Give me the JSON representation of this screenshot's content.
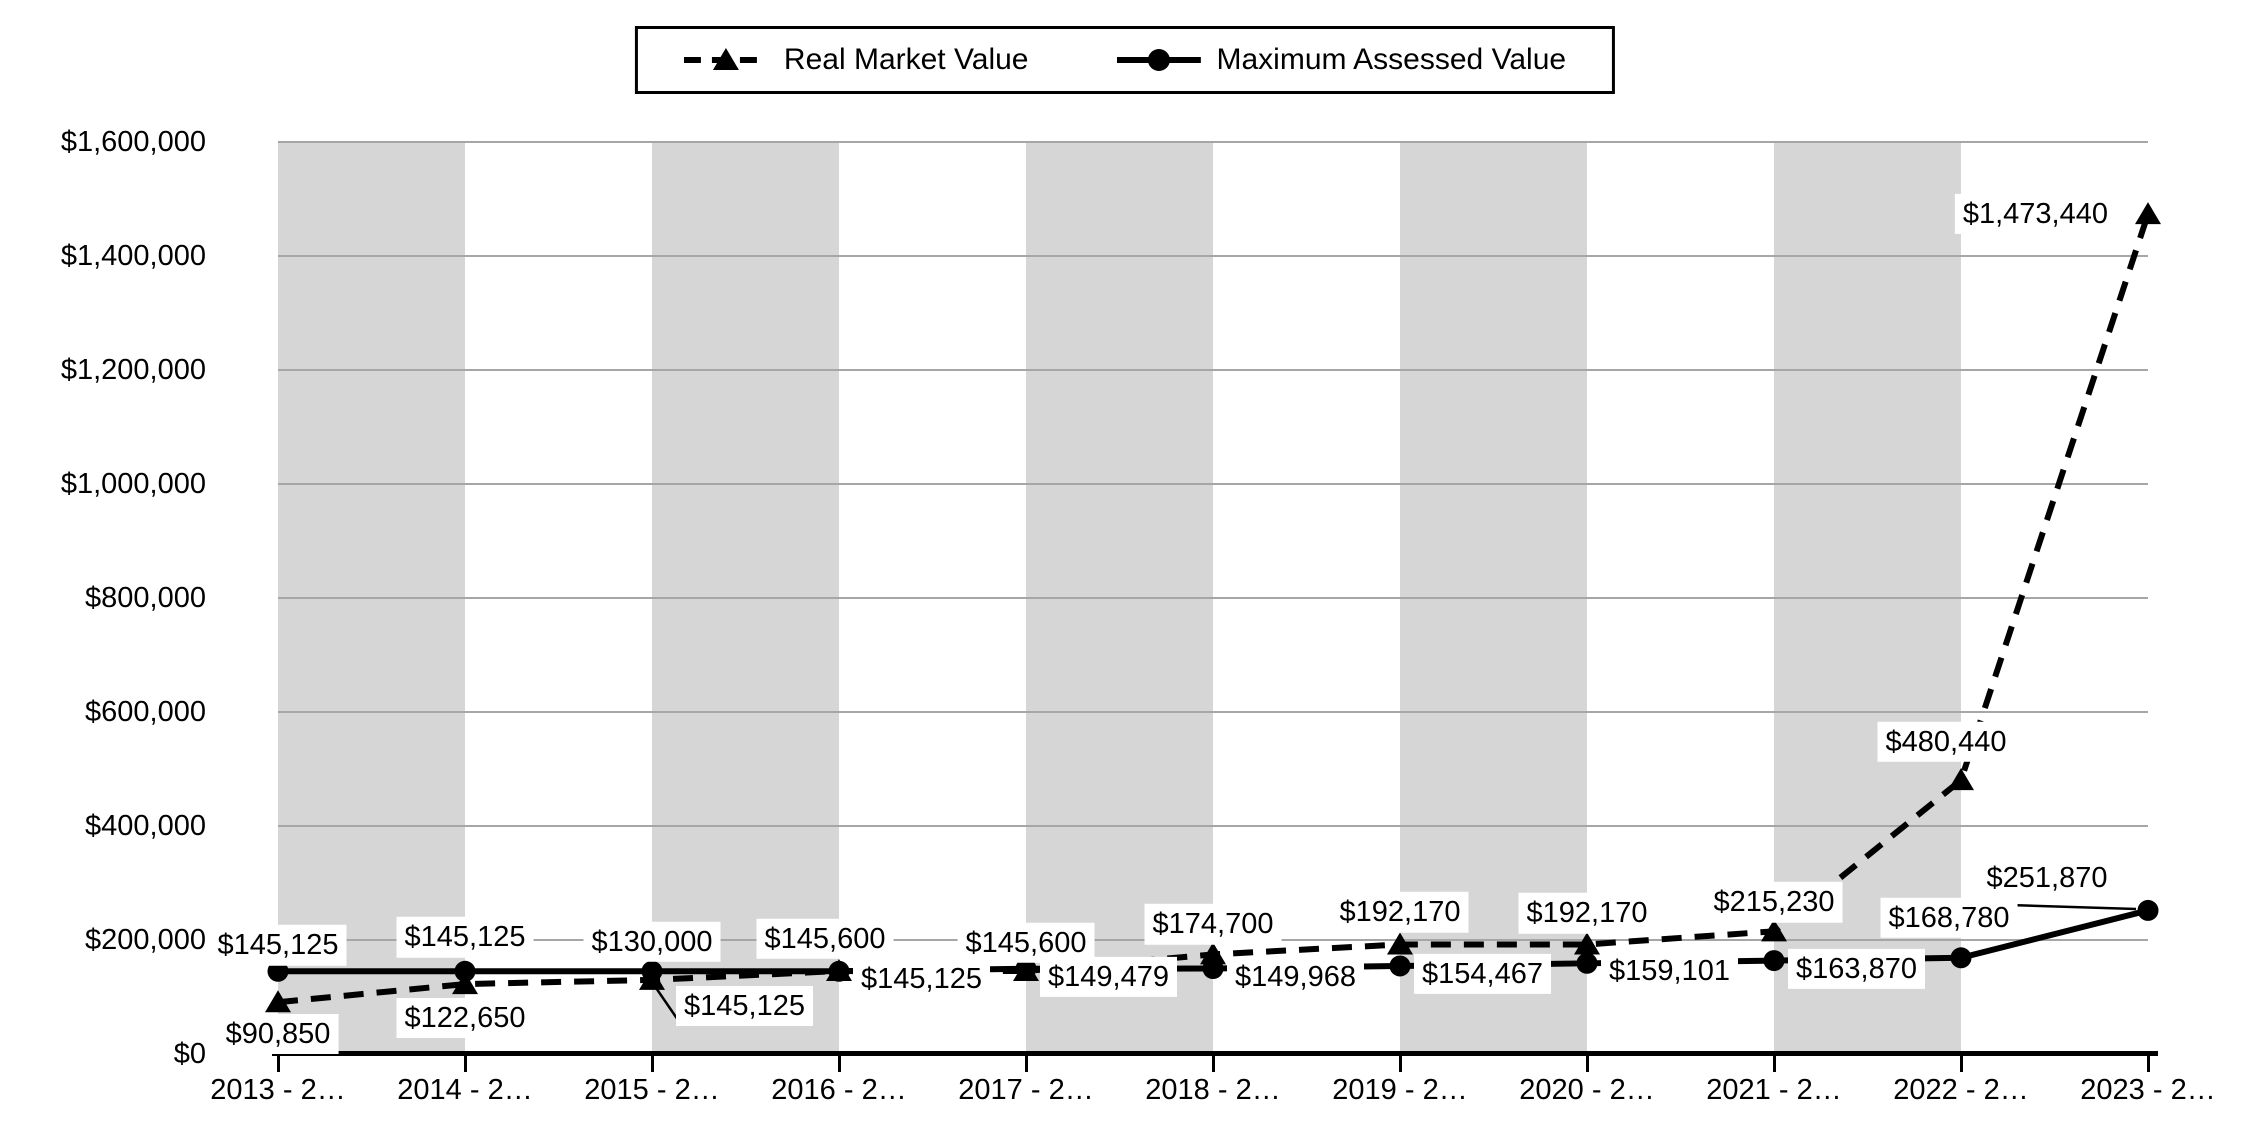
{
  "chart_data": {
    "type": "line",
    "title": "",
    "legend": {
      "position": "top"
    },
    "categories": [
      "2013 - 2…",
      "2014 - 2…",
      "2015 - 2…",
      "2016 - 2…",
      "2017 - 2…",
      "2018 - 2…",
      "2019 - 2…",
      "2020 - 2…",
      "2021 - 2…",
      "2022 - 2…",
      "2023 - 2…"
    ],
    "series": [
      {
        "name": "Real Market Value",
        "line_style": "dashed",
        "marker": "triangle",
        "color": "#000000",
        "values": [
          90850,
          122650,
          130000,
          145600,
          145600,
          174700,
          192170,
          192170,
          215230,
          480440,
          1473440
        ],
        "labels": [
          "$90,850",
          "$122,650",
          "$130,000",
          "$145,600",
          "$145,600",
          "$174,700",
          "$192,170",
          "$192,170",
          "$215,230",
          "$480,440",
          "$1,473,440"
        ]
      },
      {
        "name": "Maximum Assessed Value",
        "line_style": "solid",
        "marker": "circle",
        "color": "#000000",
        "values": [
          145125,
          145125,
          145125,
          145125,
          149479,
          149968,
          154467,
          159101,
          163870,
          168780,
          251870
        ],
        "labels": [
          "$145,125",
          "$145,125",
          "$145,125",
          "$145,125",
          "$149,479",
          "$149,968",
          "$154,467",
          "$159,101",
          "$163,870",
          "$168,780",
          "$251,870"
        ]
      }
    ],
    "y_axis": {
      "min": 0,
      "max": 1600000,
      "step": 200000,
      "tick_labels": [
        "$0",
        "$200,000",
        "$400,000",
        "$600,000",
        "$800,000",
        "$1,000,000",
        "$1,200,000",
        "$1,400,000",
        "$1,600,000"
      ]
    },
    "plot": {
      "grid": true,
      "band_color": "#D6D6D6",
      "gridline_color": "#A6A6A6",
      "background": "#FFFFFF",
      "line_color": "#000000"
    }
  }
}
